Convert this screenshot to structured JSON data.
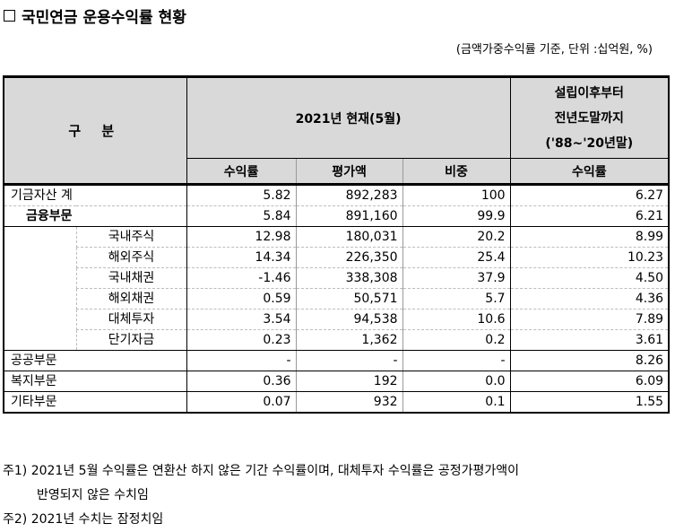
{
  "title": "국민연금 운용수익률 현황",
  "unit_note": "(금액가중수익률 기준, 단위 :십억원, %)",
  "header": {
    "gubun": "구 분",
    "current": "2021년 현재(5월)",
    "since_line1": "설립이후부터",
    "since_line2": "전년도말까지",
    "since_line3": "('88~'20년말)",
    "col_return": "수익률",
    "col_value": "평가액",
    "col_weight": "비중",
    "col_cum_return": "수익률"
  },
  "rows": [
    {
      "label": "기금자산 계",
      "return": "5.82",
      "value": "892,283",
      "weight": "100",
      "cum": "6.27"
    },
    {
      "label": "금융부문",
      "return": "5.84",
      "value": "891,160",
      "weight": "99.9",
      "cum": "6.21"
    },
    {
      "label": "국내주식",
      "return": "12.98",
      "value": "180,031",
      "weight": "20.2",
      "cum": "8.99"
    },
    {
      "label": "해외주식",
      "return": "14.34",
      "value": "226,350",
      "weight": "25.4",
      "cum": "10.23"
    },
    {
      "label": "국내채권",
      "return": "-1.46",
      "value": "338,308",
      "weight": "37.9",
      "cum": "4.50"
    },
    {
      "label": "해외채권",
      "return": "0.59",
      "value": "50,571",
      "weight": "5.7",
      "cum": "4.36"
    },
    {
      "label": "대체투자",
      "return": "3.54",
      "value": "94,538",
      "weight": "10.6",
      "cum": "7.89"
    },
    {
      "label": "단기자금",
      "return": "0.23",
      "value": "1,362",
      "weight": "0.2",
      "cum": "3.61"
    },
    {
      "label": "공공부문",
      "return": "-",
      "value": "-",
      "weight": "-",
      "cum": "8.26"
    },
    {
      "label": "복지부문",
      "return": "0.36",
      "value": "192",
      "weight": "0.0",
      "cum": "6.09"
    },
    {
      "label": "기타부문",
      "return": "0.07",
      "value": "932",
      "weight": "0.1",
      "cum": "1.55"
    }
  ],
  "notes": {
    "note1_a": "주1) 2021년 5월 수익률은 연환산 하지 않은 기간 수익률이며, 대체투자 수익률은 공정가평가액이",
    "note1_b": "반영되지 않은 수치임",
    "note2": "주2) 2021년 수치는 잠정치임"
  }
}
